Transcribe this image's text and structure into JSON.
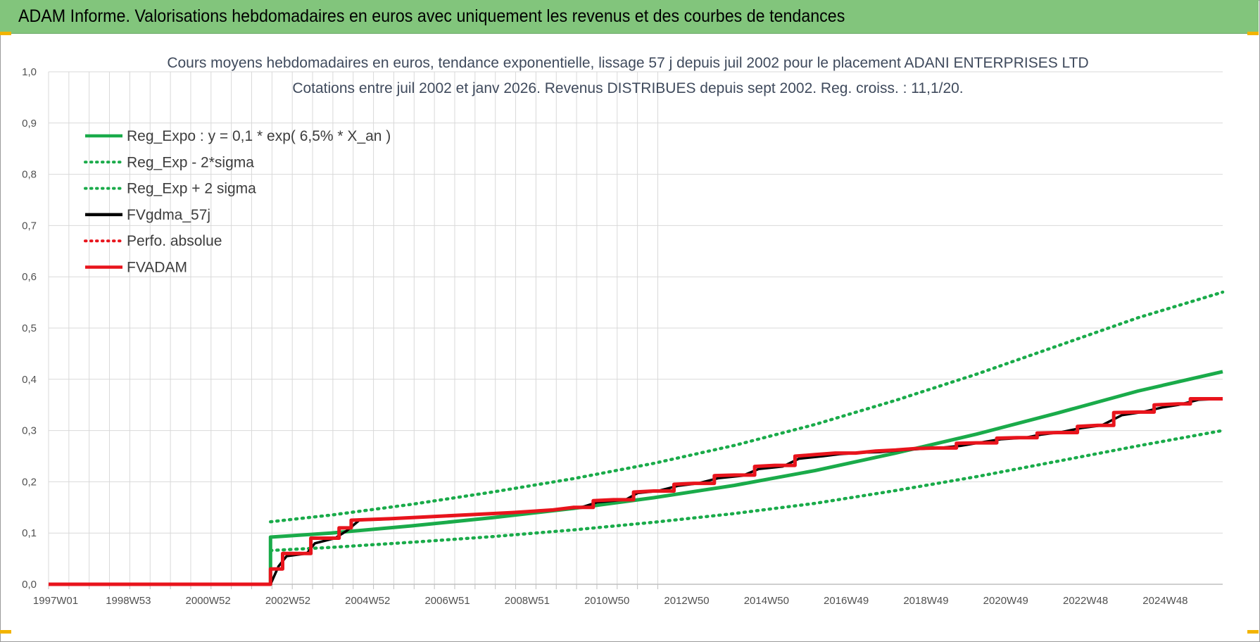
{
  "header": {
    "title": "ADAM Informe. Valorisations hebdomadaires en euros avec uniquement les revenus et des courbes de tendances"
  },
  "colors": {
    "banner": "#82c57c",
    "green": "#1aab4a",
    "black": "#000000",
    "red": "#e8141c",
    "grid": "#d9d9d9",
    "accent": "#f2b400"
  },
  "chart_data": {
    "type": "line",
    "title_lines": [
      "Cours moyens hebdomadaires en euros, tendance exponentielle, lissage 57 j depuis juil 2002 pour le placement ADANI ENTERPRISES LTD",
      "Cotations entre juil 2002 et janv 2026. Revenus DISTRIBUES depuis sept 2002. Reg. croiss. : 11,1/20."
    ],
    "x_tick_labels": [
      "1997W01",
      "1998W53",
      "2000W52",
      "2002W52",
      "2004W52",
      "2006W51",
      "2008W51",
      "2010W50",
      "2012W50",
      "2014W50",
      "2016W49",
      "2018W49",
      "2020W49",
      "2022W48",
      "2024W48"
    ],
    "xlim": [
      1997.0,
      2026.1
    ],
    "ylim": [
      0,
      1.0
    ],
    "y_ticks": [
      "0,0",
      "0,1",
      "0,2",
      "0,3",
      "0,4",
      "0,5",
      "0,6",
      "0,7",
      "0,8",
      "0,9",
      "1,0"
    ],
    "grid": true,
    "legend_position": "top-left",
    "legend": [
      {
        "label": "Reg_Expo : y = 0,1 * exp( 6,5% *  X_an )",
        "color": "#1aab4a",
        "style": "solid"
      },
      {
        "label": "Reg_Exp - 2*sigma",
        "color": "#1aab4a",
        "style": "dotted"
      },
      {
        "label": "Reg_Exp + 2 sigma",
        "color": "#1aab4a",
        "style": "dotted"
      },
      {
        "label": "FVgdma_57j",
        "color": "#000000",
        "style": "solid"
      },
      {
        "label": "Perfo. absolue",
        "color": "#e8141c",
        "style": "dotted"
      },
      {
        "label": "FVADAM",
        "color": "#e8141c",
        "style": "solid"
      }
    ],
    "series": [
      {
        "name": "Reg_Expo : y = 0,1 * exp( 6,5% *  X_an )",
        "x": [
          1997.0,
          2002.5,
          2002.5,
          2004.0,
          2006.0,
          2008.0,
          2010.0,
          2012.0,
          2014.0,
          2016.0,
          2018.0,
          2020.0,
          2022.0,
          2024.0,
          2026.1
        ],
        "y": [
          0,
          0,
          0.092,
          0.1,
          0.114,
          0.13,
          0.148,
          0.169,
          0.193,
          0.222,
          0.256,
          0.293,
          0.334,
          0.377,
          0.415
        ]
      },
      {
        "name": "Reg_Exp - 2*sigma",
        "x": [
          2002.5,
          2004.0,
          2006.0,
          2008.0,
          2010.0,
          2012.0,
          2014.0,
          2016.0,
          2018.0,
          2020.0,
          2022.0,
          2024.0,
          2026.1
        ],
        "y": [
          0.066,
          0.072,
          0.082,
          0.093,
          0.106,
          0.121,
          0.138,
          0.158,
          0.183,
          0.21,
          0.24,
          0.27,
          0.3
        ]
      },
      {
        "name": "Reg_Exp + 2 sigma",
        "x": [
          2002.5,
          2004.0,
          2006.0,
          2008.0,
          2010.0,
          2012.0,
          2014.0,
          2016.0,
          2018.0,
          2020.0,
          2022.0,
          2024.0,
          2026.1
        ],
        "y": [
          0.122,
          0.135,
          0.156,
          0.18,
          0.206,
          0.236,
          0.271,
          0.312,
          0.359,
          0.41,
          0.465,
          0.52,
          0.57
        ]
      },
      {
        "name": "FVgdma_57j",
        "x": [
          1997.0,
          2002.5,
          2002.7,
          2002.9,
          2003.4,
          2003.6,
          2004.1,
          2004.4,
          2004.7,
          2005.4,
          2006.4,
          2007.4,
          2008.4,
          2009.4,
          2010.2,
          2010.6,
          2011.3,
          2011.6,
          2012.1,
          2012.6,
          2013.1,
          2013.6,
          2014.2,
          2014.6,
          2015.2,
          2015.6,
          2016.2,
          2016.6,
          2017.2,
          2017.6,
          2018.2,
          2018.6,
          2019.2,
          2019.6,
          2020.2,
          2020.6,
          2021.2,
          2021.6,
          2022.1,
          2022.6,
          2023.1,
          2023.6,
          2024.1,
          2024.6,
          2025.0,
          2025.5,
          2026.1
        ],
        "y": [
          0,
          0,
          0.035,
          0.055,
          0.06,
          0.08,
          0.09,
          0.105,
          0.125,
          0.127,
          0.132,
          0.136,
          0.14,
          0.145,
          0.15,
          0.16,
          0.165,
          0.178,
          0.182,
          0.192,
          0.197,
          0.207,
          0.212,
          0.225,
          0.23,
          0.245,
          0.25,
          0.254,
          0.257,
          0.258,
          0.262,
          0.264,
          0.267,
          0.27,
          0.278,
          0.283,
          0.286,
          0.292,
          0.297,
          0.305,
          0.31,
          0.33,
          0.336,
          0.345,
          0.35,
          0.36,
          0.362
        ]
      },
      {
        "name": "FVADAM",
        "x": [
          1997.0,
          2002.5,
          2002.5,
          2002.8,
          2002.8,
          2003.5,
          2003.5,
          2004.2,
          2004.2,
          2004.5,
          2004.5,
          2005.5,
          2006.5,
          2007.5,
          2008.5,
          2009.5,
          2010.0,
          2010.5,
          2010.5,
          2011.0,
          2011.5,
          2011.5,
          2012.0,
          2012.5,
          2012.5,
          2013.0,
          2013.5,
          2013.5,
          2014.0,
          2014.5,
          2014.5,
          2015.0,
          2015.5,
          2015.5,
          2016.0,
          2016.5,
          2017.0,
          2017.5,
          2018.0,
          2018.5,
          2019.0,
          2019.5,
          2019.5,
          2020.0,
          2020.5,
          2020.5,
          2021.0,
          2021.5,
          2021.5,
          2022.0,
          2022.5,
          2022.5,
          2023.0,
          2023.4,
          2023.4,
          2024.0,
          2024.4,
          2024.4,
          2025.0,
          2025.3,
          2025.3,
          2026.1
        ],
        "y": [
          0,
          0,
          0.03,
          0.03,
          0.06,
          0.06,
          0.09,
          0.09,
          0.11,
          0.11,
          0.125,
          0.128,
          0.132,
          0.136,
          0.14,
          0.145,
          0.15,
          0.15,
          0.163,
          0.165,
          0.165,
          0.18,
          0.182,
          0.182,
          0.195,
          0.197,
          0.197,
          0.212,
          0.213,
          0.213,
          0.23,
          0.232,
          0.232,
          0.25,
          0.253,
          0.256,
          0.256,
          0.26,
          0.262,
          0.265,
          0.266,
          0.266,
          0.275,
          0.276,
          0.276,
          0.285,
          0.286,
          0.286,
          0.295,
          0.296,
          0.296,
          0.308,
          0.31,
          0.31,
          0.335,
          0.336,
          0.336,
          0.35,
          0.352,
          0.352,
          0.362,
          0.362
        ]
      }
    ]
  }
}
